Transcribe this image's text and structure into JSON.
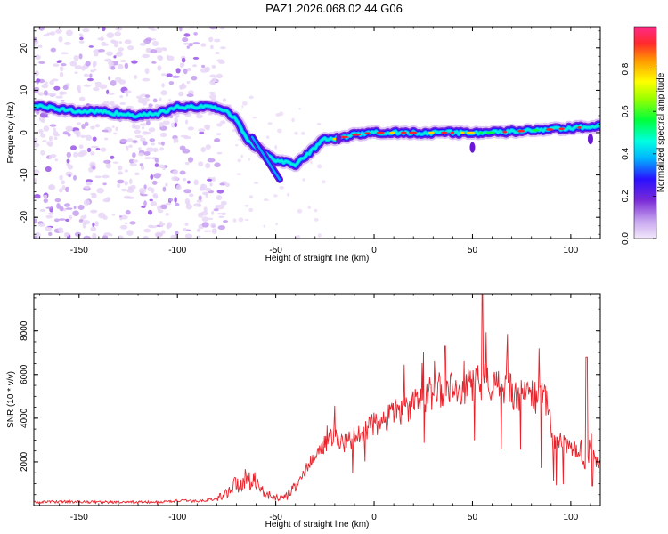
{
  "title": "PAZ1.2026.068.02.44.G06",
  "chart_data": [
    {
      "type": "heatmap",
      "xlabel": "Height of straight line (km)",
      "ylabel": "Frequency (Hz)",
      "xlim": [
        -173,
        115
      ],
      "ylim": [
        -25,
        25
      ],
      "xticks": [
        "-150",
        "-100",
        "-50",
        "0",
        "50",
        "100"
      ],
      "yticks": [
        "-20",
        "-10",
        "0",
        "10",
        "20"
      ],
      "ridge": {
        "x": [
          -173,
          -160,
          -150,
          -140,
          -130,
          -120,
          -110,
          -100,
          -90,
          -80,
          -75,
          -70,
          -65,
          -60,
          -55,
          -50,
          -45,
          -40,
          -35,
          -30,
          -25,
          -20,
          -10,
          0,
          20,
          40,
          50,
          60,
          80,
          100,
          112
        ],
        "y": [
          6.5,
          5.5,
          5,
          5,
          4.5,
          4,
          4.5,
          6,
          6,
          6,
          5,
          3,
          -1.5,
          -3.5,
          -5,
          -6.5,
          -7,
          -7.5,
          -5.5,
          -3.5,
          -1.5,
          -1.5,
          -0.5,
          0,
          0,
          0,
          0,
          0,
          0.5,
          1,
          1.5
        ]
      },
      "colorbar": {
        "label": "Normalized spectral amplitude",
        "ticks": [
          "0.0",
          "0.2",
          "0.4",
          "0.6",
          "0.8"
        ]
      },
      "grid": false
    },
    {
      "type": "line",
      "xlabel": "Height of straight line (km)",
      "ylabel": "SNR (10 * v/v)",
      "xlim": [
        -173,
        115
      ],
      "ylim": [
        0,
        9700
      ],
      "xticks": [
        "-150",
        "-100",
        "-50",
        "0",
        "50",
        "100"
      ],
      "yticks": [
        "2000",
        "4000",
        "6000",
        "8000"
      ],
      "series": [
        {
          "color": "#e8222a",
          "x": [
            -173,
            -160,
            -150,
            -140,
            -130,
            -120,
            -110,
            -100,
            -90,
            -85,
            -80,
            -75,
            -70,
            -65,
            -62,
            -60,
            -55,
            -50,
            -45,
            -40,
            -35,
            -30,
            -25,
            -20,
            -15,
            -10,
            -5,
            0,
            5,
            10,
            15,
            20,
            25,
            30,
            35,
            40,
            45,
            50,
            55,
            60,
            65,
            70,
            75,
            80,
            85,
            88,
            90,
            95,
            100,
            105,
            108,
            110,
            113
          ],
          "y": [
            150,
            180,
            170,
            160,
            150,
            160,
            150,
            220,
            200,
            250,
            300,
            600,
            1000,
            1200,
            1400,
            1000,
            500,
            350,
            400,
            800,
            1600,
            2300,
            2800,
            3200,
            2800,
            3100,
            3400,
            3700,
            3800,
            4200,
            4400,
            4600,
            4900,
            5200,
            5300,
            5400,
            5500,
            5500,
            5700,
            5400,
            5300,
            5200,
            5000,
            5000,
            4900,
            4900,
            3000,
            2900,
            2700,
            2500,
            1700,
            2500,
            2000
          ]
        }
      ],
      "grid": false
    }
  ]
}
